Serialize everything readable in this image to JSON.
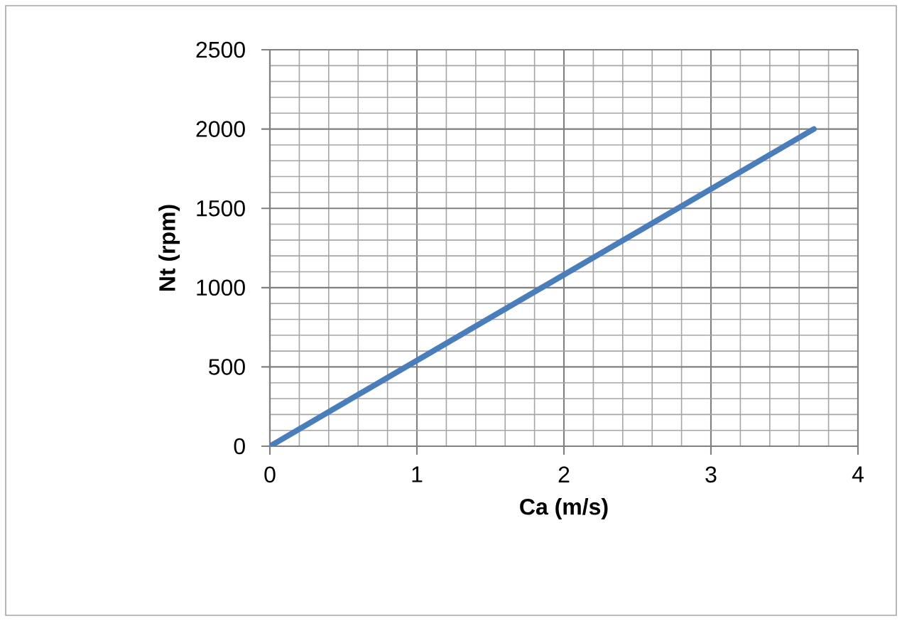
{
  "chart_data": {
    "type": "line",
    "xlabel": "Ca (m/s)",
    "ylabel": "Nt (rpm)",
    "x": [
      0,
      3.7
    ],
    "series": [
      {
        "color": "#4a7ebb",
        "values": [
          0,
          2000
        ]
      }
    ],
    "xlim": [
      0,
      4
    ],
    "ylim": [
      0,
      2500
    ],
    "xticks": [
      0,
      1,
      2,
      3,
      4
    ],
    "yticks": [
      0,
      500,
      1000,
      1500,
      2000,
      2500
    ],
    "grid": true,
    "marker": "none",
    "line_style": "solid"
  }
}
